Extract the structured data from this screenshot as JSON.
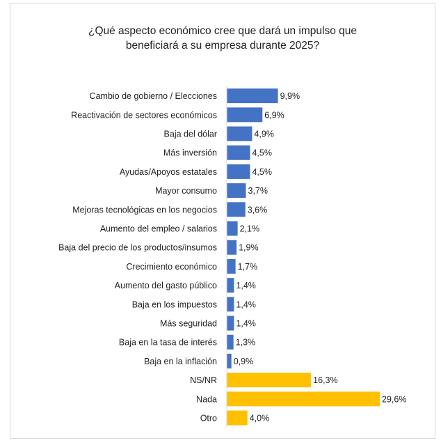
{
  "chart_data": {
    "type": "bar",
    "orientation": "horizontal",
    "title_lines": [
      "¿Qué aspecto económico cree que dará un impulso que",
      "beneficiará a su empresa durante 2025?"
    ],
    "categories": [
      "Cambio de gobierno / Elecciones",
      "Reactivación de sectores económicos",
      "Baja del dólar",
      "Más inversión",
      "Ayudas/Apoyos estatales",
      "Mayor consumo",
      "Mejoras tecnológicas en los negocios",
      "Aumento del empleo / salarios",
      "Baja del precio de los productos/insumos",
      "Crecimiento económico",
      "Aumento del gasto público",
      "Baja en los impuestos",
      "Más seguridad",
      "Baja en la tasa de interés",
      "Baja en la inflación",
      "NS/NR",
      "Nada",
      "Otro"
    ],
    "values": [
      9.9,
      6.9,
      4.9,
      4.5,
      4.5,
      3.7,
      3.6,
      2.1,
      1.9,
      1.7,
      1.4,
      1.4,
      1.4,
      1.3,
      0.9,
      16.3,
      29.6,
      4.0
    ],
    "value_labels": [
      "9,9%",
      "6,9%",
      "4,9%",
      "4,5%",
      "4,5%",
      "3,7%",
      "3,6%",
      "2,1%",
      "1,9%",
      "1,7%",
      "1,4%",
      "1,4%",
      "1,4%",
      "1,3%",
      "0,9%",
      "16,3%",
      "29,6%",
      "4,0%"
    ],
    "bar_colors": [
      "#4472c4",
      "#4472c4",
      "#4472c4",
      "#4472c4",
      "#4472c4",
      "#4472c4",
      "#4472c4",
      "#4472c4",
      "#4472c4",
      "#4472c4",
      "#4472c4",
      "#4472c4",
      "#4472c4",
      "#4472c4",
      "#4472c4",
      "#ffc000",
      "#ffc000",
      "#ffc000"
    ],
    "xlim": [
      0,
      29.6
    ],
    "grid": false,
    "legend": "none"
  }
}
